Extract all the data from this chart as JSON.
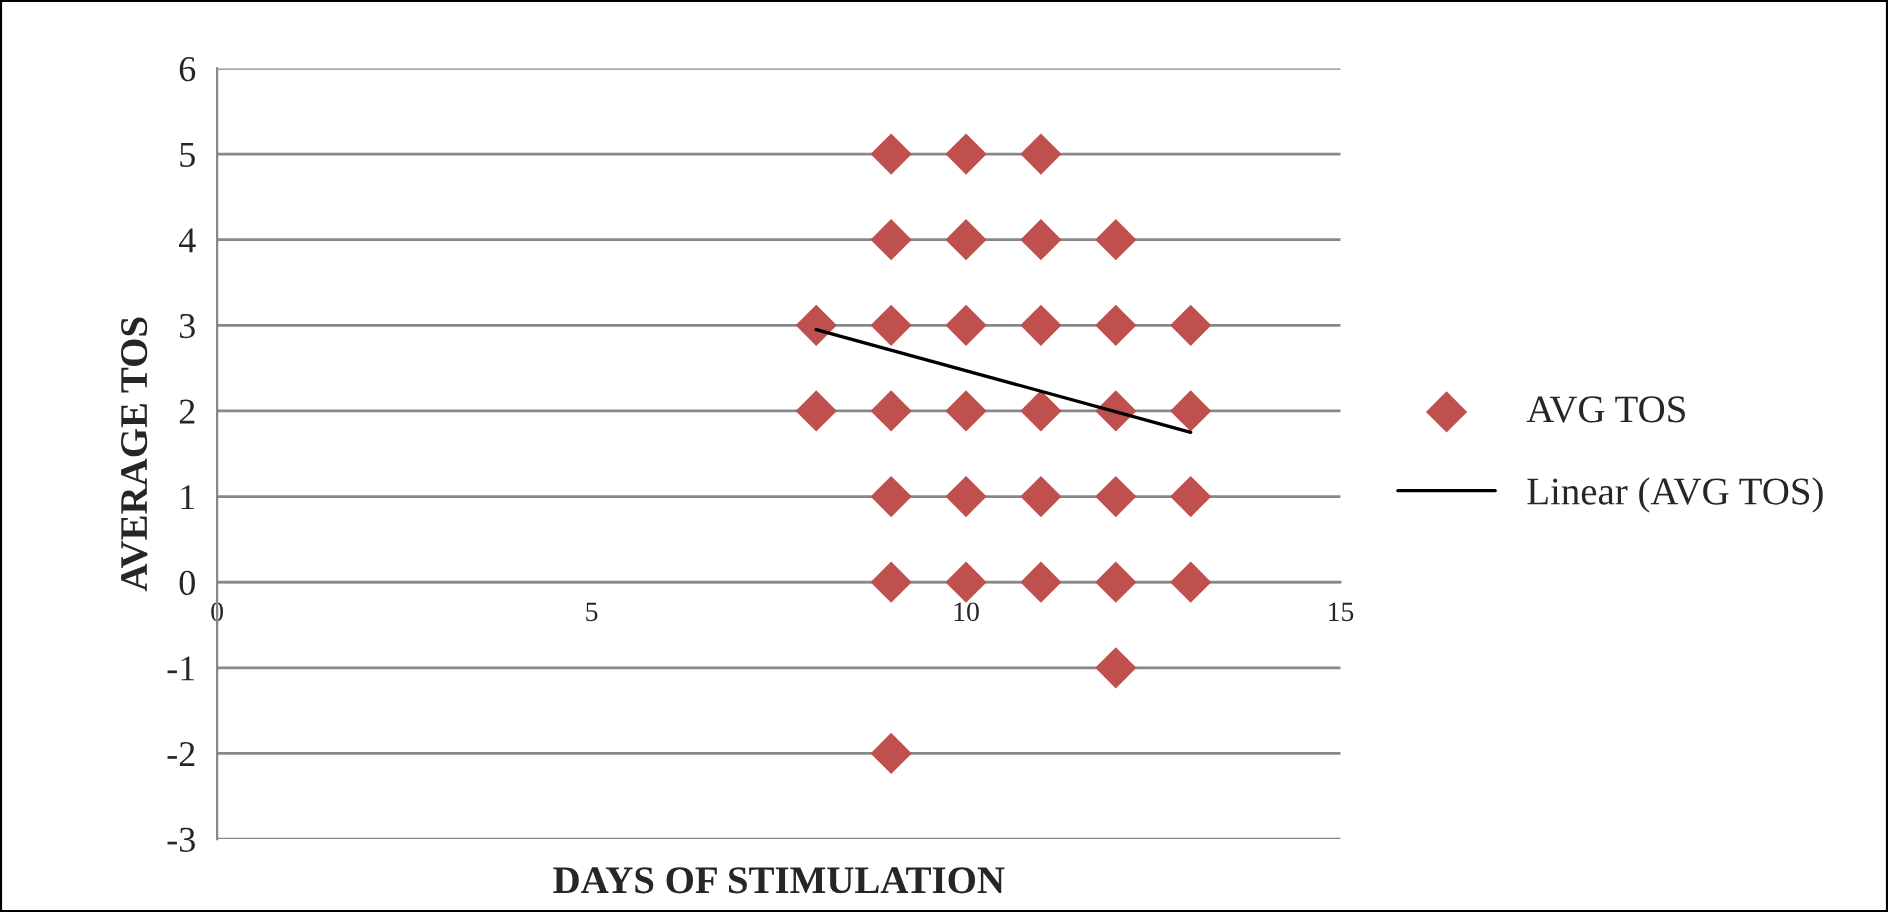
{
  "chart_data": {
    "type": "scatter",
    "xlabel": "DAYS OF STIMULATION",
    "ylabel": "AVERAGE TOS",
    "series": [
      {
        "name": "AVG TOS",
        "color": "#c0504d",
        "marker": "diamond",
        "x": [
          8,
          8,
          9,
          9,
          9,
          9,
          9,
          9,
          9,
          10,
          10,
          10,
          10,
          10,
          10,
          11,
          11,
          11,
          11,
          11,
          11,
          12,
          12,
          12,
          12,
          12,
          12,
          13,
          13,
          13,
          13
        ],
        "values": [
          3,
          2,
          5,
          4,
          3,
          2,
          1,
          0,
          -2,
          5,
          4,
          3,
          2,
          1,
          0,
          5,
          4,
          3,
          2,
          1,
          0,
          4,
          3,
          2,
          1,
          0,
          -1,
          3,
          2,
          1,
          0
        ]
      },
      {
        "name": "Linear (AVG TOS)",
        "type": "line",
        "color": "#000000",
        "marker": "none",
        "line_style": "solid",
        "x": [
          8,
          13
        ],
        "values": [
          2.95,
          1.75
        ]
      }
    ],
    "xlim": [
      0,
      15
    ],
    "xticks": [
      0,
      5,
      10,
      15
    ],
    "ylim": [
      -3,
      6
    ],
    "yticks": [
      -3,
      -2,
      -1,
      0,
      1,
      2,
      3,
      4,
      5,
      6
    ],
    "grid": "y",
    "legend": "right"
  }
}
